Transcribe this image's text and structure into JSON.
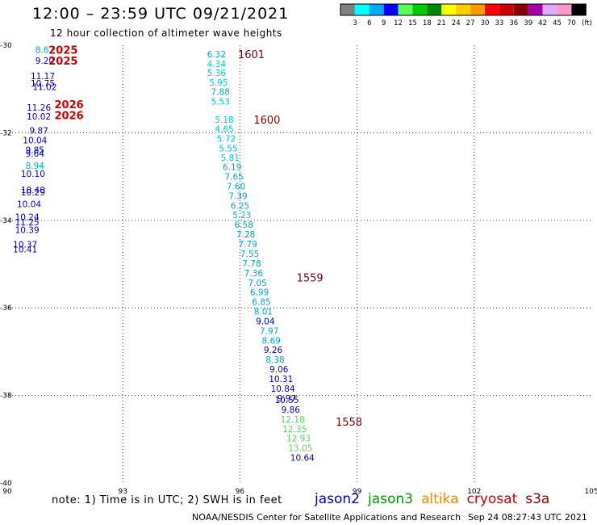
{
  "title": "12:00 – 23:59 UTC 09/21/2021",
  "subtitle": "12 hour collection of altimeter wave heights",
  "note": "note:  1) Time is in UTC;  2) SWH is in feet",
  "credit": "NOAA/NESDIS Center for Satellite Applications and Research",
  "timestamp": "Sep 24 08:27:43 UTC 2021",
  "satellites": [
    {
      "name": "jason2",
      "color": "#0000cc"
    },
    {
      "name": "jason3",
      "color": "#009900"
    },
    {
      "name": "altika",
      "color": "#ff8800"
    },
    {
      "name": "cryosat",
      "color": "#cc0000"
    },
    {
      "name": "s3a",
      "color": "#880000"
    }
  ],
  "colorbar": {
    "unit": "(ft)",
    "ticks": [
      "3",
      "6",
      "9",
      "12",
      "15",
      "18",
      "21",
      "24",
      "27",
      "30",
      "33",
      "36",
      "39",
      "42",
      "45",
      "70"
    ],
    "colors": [
      "#808080",
      "#00ffff",
      "#00aaff",
      "#0000ff",
      "#55ff55",
      "#00cc00",
      "#008800",
      "#ffff00",
      "#ffcc00",
      "#ff9900",
      "#ff0000",
      "#cc0000",
      "#880000",
      "#aa00aa",
      "#ddaaff",
      "#ff99cc",
      "#000000"
    ]
  },
  "chart_data": {
    "type": "scatter",
    "title": "12:00 – 23:59 UTC 09/21/2021",
    "xlim": [
      90,
      105
    ],
    "ylim": [
      -40,
      -30
    ],
    "xticks": [
      "90",
      "93",
      "96",
      "99",
      "102",
      "105"
    ],
    "yticks": [
      "-30",
      "-32",
      "-34",
      "-36",
      "-38",
      "-40"
    ],
    "grid": true,
    "time_labels": [
      {
        "text": "1601",
        "lon": 95.95,
        "lat": -30.2,
        "color": "#880000"
      },
      {
        "text": "1600",
        "lon": 96.35,
        "lat": -31.7,
        "color": "#880000"
      },
      {
        "text": "1559",
        "lon": 97.45,
        "lat": -35.3,
        "color": "#880000"
      },
      {
        "text": "1558",
        "lon": 98.45,
        "lat": -38.6,
        "color": "#880000"
      },
      {
        "text": "2025",
        "lon": 91.1,
        "lat": -30.1,
        "color": "#cc0000"
      },
      {
        "text": "2025",
        "lon": 91.1,
        "lat": -30.35,
        "color": "#cc0000"
      },
      {
        "text": "2026",
        "lon": 91.25,
        "lat": -31.35,
        "color": "#cc0000"
      },
      {
        "text": "2026",
        "lon": 91.25,
        "lat": -31.6,
        "color": "#cc0000"
      }
    ],
    "points": [
      {
        "v": "6.32",
        "lon": 95.4,
        "lat": -30.2,
        "color": "#00aacc"
      },
      {
        "v": "4.34",
        "lon": 95.4,
        "lat": -30.42,
        "color": "#00cccc"
      },
      {
        "v": "5.36",
        "lon": 95.4,
        "lat": -30.63,
        "color": "#00cccc"
      },
      {
        "v": "5.95",
        "lon": 95.45,
        "lat": -30.85,
        "color": "#00cccc"
      },
      {
        "v": "7.88",
        "lon": 95.5,
        "lat": -31.06,
        "color": "#00aacc"
      },
      {
        "v": "5.53",
        "lon": 95.5,
        "lat": -31.28,
        "color": "#00cccc"
      },
      {
        "v": "5.18",
        "lon": 95.6,
        "lat": -31.7,
        "color": "#00cccc"
      },
      {
        "v": "4.65",
        "lon": 95.6,
        "lat": -31.91,
        "color": "#00cccc"
      },
      {
        "v": "5.72",
        "lon": 95.65,
        "lat": -32.13,
        "color": "#00cccc"
      },
      {
        "v": "5.55",
        "lon": 95.7,
        "lat": -32.35,
        "color": "#00cccc"
      },
      {
        "v": "5.81",
        "lon": 95.75,
        "lat": -32.56,
        "color": "#00cccc"
      },
      {
        "v": "6.19",
        "lon": 95.8,
        "lat": -32.78,
        "color": "#00aacc"
      },
      {
        "v": "7.65",
        "lon": 95.85,
        "lat": -33.0,
        "color": "#00aacc"
      },
      {
        "v": "7.60",
        "lon": 95.9,
        "lat": -33.22,
        "color": "#00aacc"
      },
      {
        "v": "7.39",
        "lon": 95.95,
        "lat": -33.44,
        "color": "#00aacc"
      },
      {
        "v": "6.25",
        "lon": 96.0,
        "lat": -33.66,
        "color": "#00aacc"
      },
      {
        "v": "5.23",
        "lon": 96.05,
        "lat": -33.87,
        "color": "#00cccc"
      },
      {
        "v": "6.58",
        "lon": 96.1,
        "lat": -34.1,
        "color": "#00aacc"
      },
      {
        "v": "7.28",
        "lon": 96.15,
        "lat": -34.32,
        "color": "#00aacc"
      },
      {
        "v": "7.79",
        "lon": 96.2,
        "lat": -34.54,
        "color": "#00aacc"
      },
      {
        "v": "7.55",
        "lon": 96.25,
        "lat": -34.76,
        "color": "#00aacc"
      },
      {
        "v": "7.78",
        "lon": 96.3,
        "lat": -34.98,
        "color": "#00aacc"
      },
      {
        "v": "7.36",
        "lon": 96.35,
        "lat": -35.2,
        "color": "#00aacc"
      },
      {
        "v": "7.05",
        "lon": 96.45,
        "lat": -35.42,
        "color": "#00aacc"
      },
      {
        "v": "6.99",
        "lon": 96.5,
        "lat": -35.64,
        "color": "#00aacc"
      },
      {
        "v": "6.85",
        "lon": 96.55,
        "lat": -35.86,
        "color": "#00aacc"
      },
      {
        "v": "8.01",
        "lon": 96.6,
        "lat": -36.08,
        "color": "#00aacc"
      },
      {
        "v": "9.04",
        "lon": 96.65,
        "lat": -36.3,
        "color": "#0000cc"
      },
      {
        "v": "7.97",
        "lon": 96.75,
        "lat": -36.52,
        "color": "#00aacc"
      },
      {
        "v": "8.69",
        "lon": 96.8,
        "lat": -36.74,
        "color": "#00aacc"
      },
      {
        "v": "9.26",
        "lon": 96.85,
        "lat": -36.96,
        "color": "#0000cc"
      },
      {
        "v": "8.38",
        "lon": 96.9,
        "lat": -37.18,
        "color": "#00aacc"
      },
      {
        "v": "9.06",
        "lon": 97.0,
        "lat": -37.4,
        "color": "#0000cc"
      },
      {
        "v": "10.31",
        "lon": 97.05,
        "lat": -37.62,
        "color": "#0000cc"
      },
      {
        "v": "10.84",
        "lon": 97.1,
        "lat": -37.84,
        "color": "#0000cc"
      },
      {
        "v": "9.97",
        "lon": 97.2,
        "lat": -38.06,
        "color": "#0000cc"
      },
      {
        "v": "10.55",
        "lon": 97.2,
        "lat": -38.1,
        "color": "#0000cc"
      },
      {
        "v": "9.86",
        "lon": 97.3,
        "lat": -38.32,
        "color": "#0000cc"
      },
      {
        "v": "12.18",
        "lon": 97.35,
        "lat": -38.54,
        "color": "#55dd55"
      },
      {
        "v": "12.35",
        "lon": 97.4,
        "lat": -38.76,
        "color": "#55dd55"
      },
      {
        "v": "12.93",
        "lon": 97.5,
        "lat": -38.98,
        "color": "#55dd55"
      },
      {
        "v": "13.05",
        "lon": 97.55,
        "lat": -39.2,
        "color": "#55dd55"
      },
      {
        "v": "10.64",
        "lon": 97.6,
        "lat": -39.42,
        "color": "#0000cc"
      },
      {
        "v": "8.67",
        "lon": 91.0,
        "lat": -30.1,
        "color": "#00aacc"
      },
      {
        "v": "9.20",
        "lon": 91.0,
        "lat": -30.35,
        "color": "#0000cc"
      },
      {
        "v": "11.17",
        "lon": 90.95,
        "lat": -30.7,
        "color": "#0000cc"
      },
      {
        "v": "10.75",
        "lon": 90.95,
        "lat": -30.87,
        "color": "#0000cc"
      },
      {
        "v": "11.02",
        "lon": 91.0,
        "lat": -30.95,
        "color": "#0000cc"
      },
      {
        "v": "11.26",
        "lon": 90.85,
        "lat": -31.42,
        "color": "#0000cc"
      },
      {
        "v": "10.02",
        "lon": 90.85,
        "lat": -31.62,
        "color": "#0000cc"
      },
      {
        "v": "9.87",
        "lon": 90.85,
        "lat": -31.95,
        "color": "#0000cc"
      },
      {
        "v": "10.04",
        "lon": 90.75,
        "lat": -32.17,
        "color": "#0000cc"
      },
      {
        "v": "9.85",
        "lon": 90.75,
        "lat": -32.39,
        "color": "#0000cc"
      },
      {
        "v": "9.64",
        "lon": 90.75,
        "lat": -32.47,
        "color": "#0000cc"
      },
      {
        "v": "8.94",
        "lon": 90.75,
        "lat": -32.75,
        "color": "#00aacc"
      },
      {
        "v": "10.10",
        "lon": 90.7,
        "lat": -32.93,
        "color": "#0000cc"
      },
      {
        "v": "10.40",
        "lon": 90.7,
        "lat": -33.3,
        "color": "#0000cc"
      },
      {
        "v": "10.29",
        "lon": 90.7,
        "lat": -33.36,
        "color": "#0000cc"
      },
      {
        "v": "10.04",
        "lon": 90.6,
        "lat": -33.63,
        "color": "#0000cc"
      },
      {
        "v": "10.24",
        "lon": 90.55,
        "lat": -33.92,
        "color": "#0000cc"
      },
      {
        "v": "11.25",
        "lon": 90.55,
        "lat": -34.04,
        "color": "#0000cc"
      },
      {
        "v": "10.39",
        "lon": 90.55,
        "lat": -34.22,
        "color": "#0000cc"
      },
      {
        "v": "10.37",
        "lon": 90.5,
        "lat": -34.55,
        "color": "#0000cc"
      },
      {
        "v": "10.41",
        "lon": 90.5,
        "lat": -34.66,
        "color": "#0000cc"
      }
    ]
  }
}
